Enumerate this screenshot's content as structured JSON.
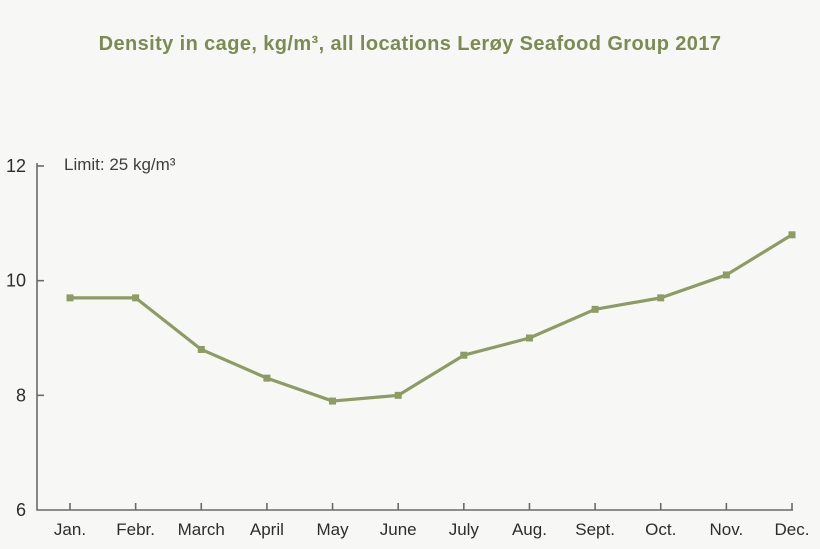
{
  "title": "Density in cage, kg/m³, all locations Lerøy Seafood Group 2017",
  "annotation": "Limit: 25 kg/m³",
  "colors": {
    "background": "#f7f7f6",
    "title": "#7c8b52",
    "line": "#8d9c62",
    "axis": "#6a6a6a",
    "tick_label": "#2d2d2d",
    "annotation_text": "#3e3e3e"
  },
  "chart_data": {
    "type": "line",
    "title": "Density in cage, kg/m³, all locations Lerøy Seafood Group 2017",
    "annotation": "Limit: 25 kg/m³",
    "categories": [
      "Jan.",
      "Febr.",
      "March",
      "April",
      "May",
      "June",
      "July",
      "Aug.",
      "Sept.",
      "Oct.",
      "Nov.",
      "Dec."
    ],
    "values": [
      9.7,
      9.7,
      8.8,
      8.3,
      7.9,
      8.0,
      8.7,
      9.0,
      9.5,
      9.7,
      10.1,
      10.8
    ],
    "xlabel": "",
    "ylabel": "",
    "ylim": [
      6,
      12
    ],
    "yticks": [
      6,
      8,
      10,
      12
    ],
    "grid": false,
    "legend": false,
    "marker": "square"
  }
}
